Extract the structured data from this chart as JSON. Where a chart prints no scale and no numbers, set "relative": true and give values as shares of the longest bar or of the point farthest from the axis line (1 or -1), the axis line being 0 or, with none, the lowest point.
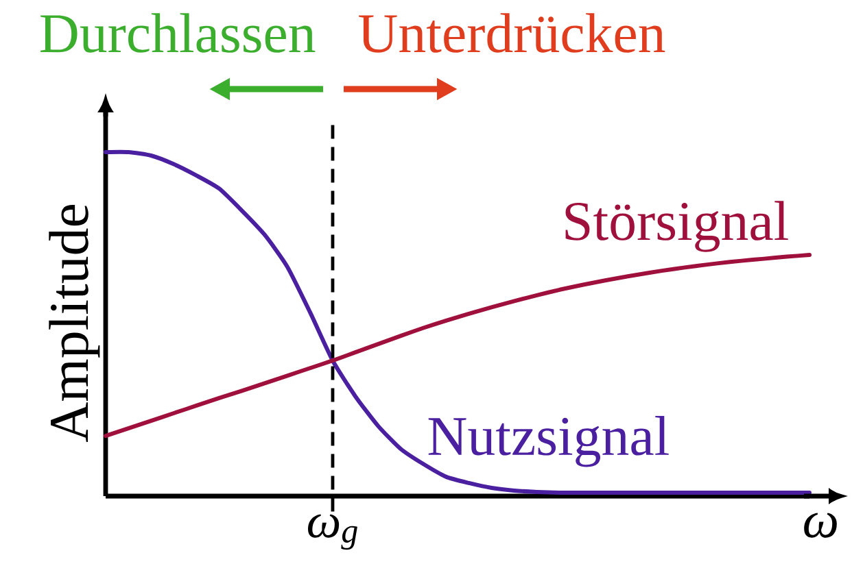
{
  "chart_data": {
    "type": "line",
    "relative": true,
    "xlabel": "ω",
    "ylabel": "Amplitude",
    "annotations": [
      "Durchlassen",
      "Unterdrücken",
      "ω$_{g}$"
    ],
    "categories": [
      null,
      null,
      null,
      null,
      null,
      null,
      null,
      null,
      null,
      null,
      null,
      null,
      null,
      null,
      null,
      null,
      null,
      null,
      null,
      null,
      null,
      null,
      null,
      null,
      null,
      null,
      null,
      null,
      null,
      null,
      null,
      null
    ],
    "series": [
      {
        "name": "Nutzsignal",
        "color": "#4a20a0",
        "values": [
          1,
          1,
          0.99,
          0.965,
          0.932,
          0.894,
          0.83,
          0.76,
          0.667,
          0.535,
          0.394,
          0.29,
          0.204,
          0.137,
          0.093,
          0.056,
          0.038,
          0.024,
          0.016,
          0.012,
          0.01,
          0.01,
          0.01,
          0.01,
          0.01,
          0.01,
          0.01,
          0.01,
          0.01,
          0.01,
          0.01,
          0.01
        ]
      },
      {
        "name": "Störsignal",
        "color": "#a0103c",
        "values": [
          0.175,
          0.197,
          0.219,
          0.241,
          0.263,
          0.285,
          0.306,
          0.328,
          0.35,
          0.372,
          0.394,
          0.418,
          0.442,
          0.466,
          0.489,
          0.51,
          0.53,
          0.549,
          0.567,
          0.584,
          0.6,
          0.614,
          0.627,
          0.639,
          0.65,
          0.66,
          0.669,
          0.677,
          0.684,
          0.69,
          0.696,
          0.701
        ]
      }
    ],
    "line_style": "solid"
  }
}
